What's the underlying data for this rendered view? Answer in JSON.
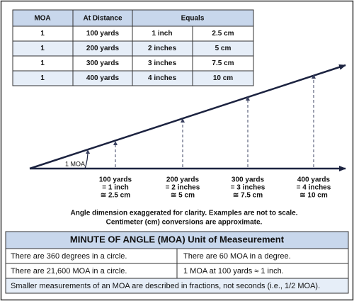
{
  "moa_table": {
    "headers": [
      "MOA",
      "At Distance",
      "Equals"
    ],
    "rows": [
      [
        "1",
        "100 yards",
        "1 inch",
        "2.5 cm"
      ],
      [
        "1",
        "200 yards",
        "2 inches",
        "5 cm"
      ],
      [
        "1",
        "300 yards",
        "3 inches",
        "7.5 cm"
      ],
      [
        "1",
        "400 yards",
        "4 inches",
        "10 cm"
      ]
    ]
  },
  "diagram": {
    "angle_label": "1 MOA",
    "markers": [
      {
        "distance": "100 yards",
        "inches": "= 1 inch",
        "cm": "≅ 2.5 cm"
      },
      {
        "distance": "200 yards",
        "inches": "= 2 inches",
        "cm": "≅ 5 cm"
      },
      {
        "distance": "300 yards",
        "inches": "= 3 inches",
        "cm": "≅ 7.5 cm"
      },
      {
        "distance": "400 yards",
        "inches": "= 4 inches",
        "cm": "≅ 10 cm"
      }
    ],
    "note": [
      "Angle dimension exaggerated for clarity.  Examples are not to scale.",
      "Centimeter (cm) conversions are approximate."
    ]
  },
  "info_table": {
    "title": "MINUTE OF ANGLE (MOA) Unit of Measeurement",
    "rows": [
      [
        "There are 360 degrees in a circle.",
        "There are 60 MOA in a degree."
      ],
      [
        "There are 21,600 MOA in a circle.",
        "1 MOA at 100 yards ≈ 1 inch."
      ],
      [
        "Smaller measurements of an MOA are described in fractions, not seconds (i.e., 1/2 MOA)."
      ]
    ]
  }
}
